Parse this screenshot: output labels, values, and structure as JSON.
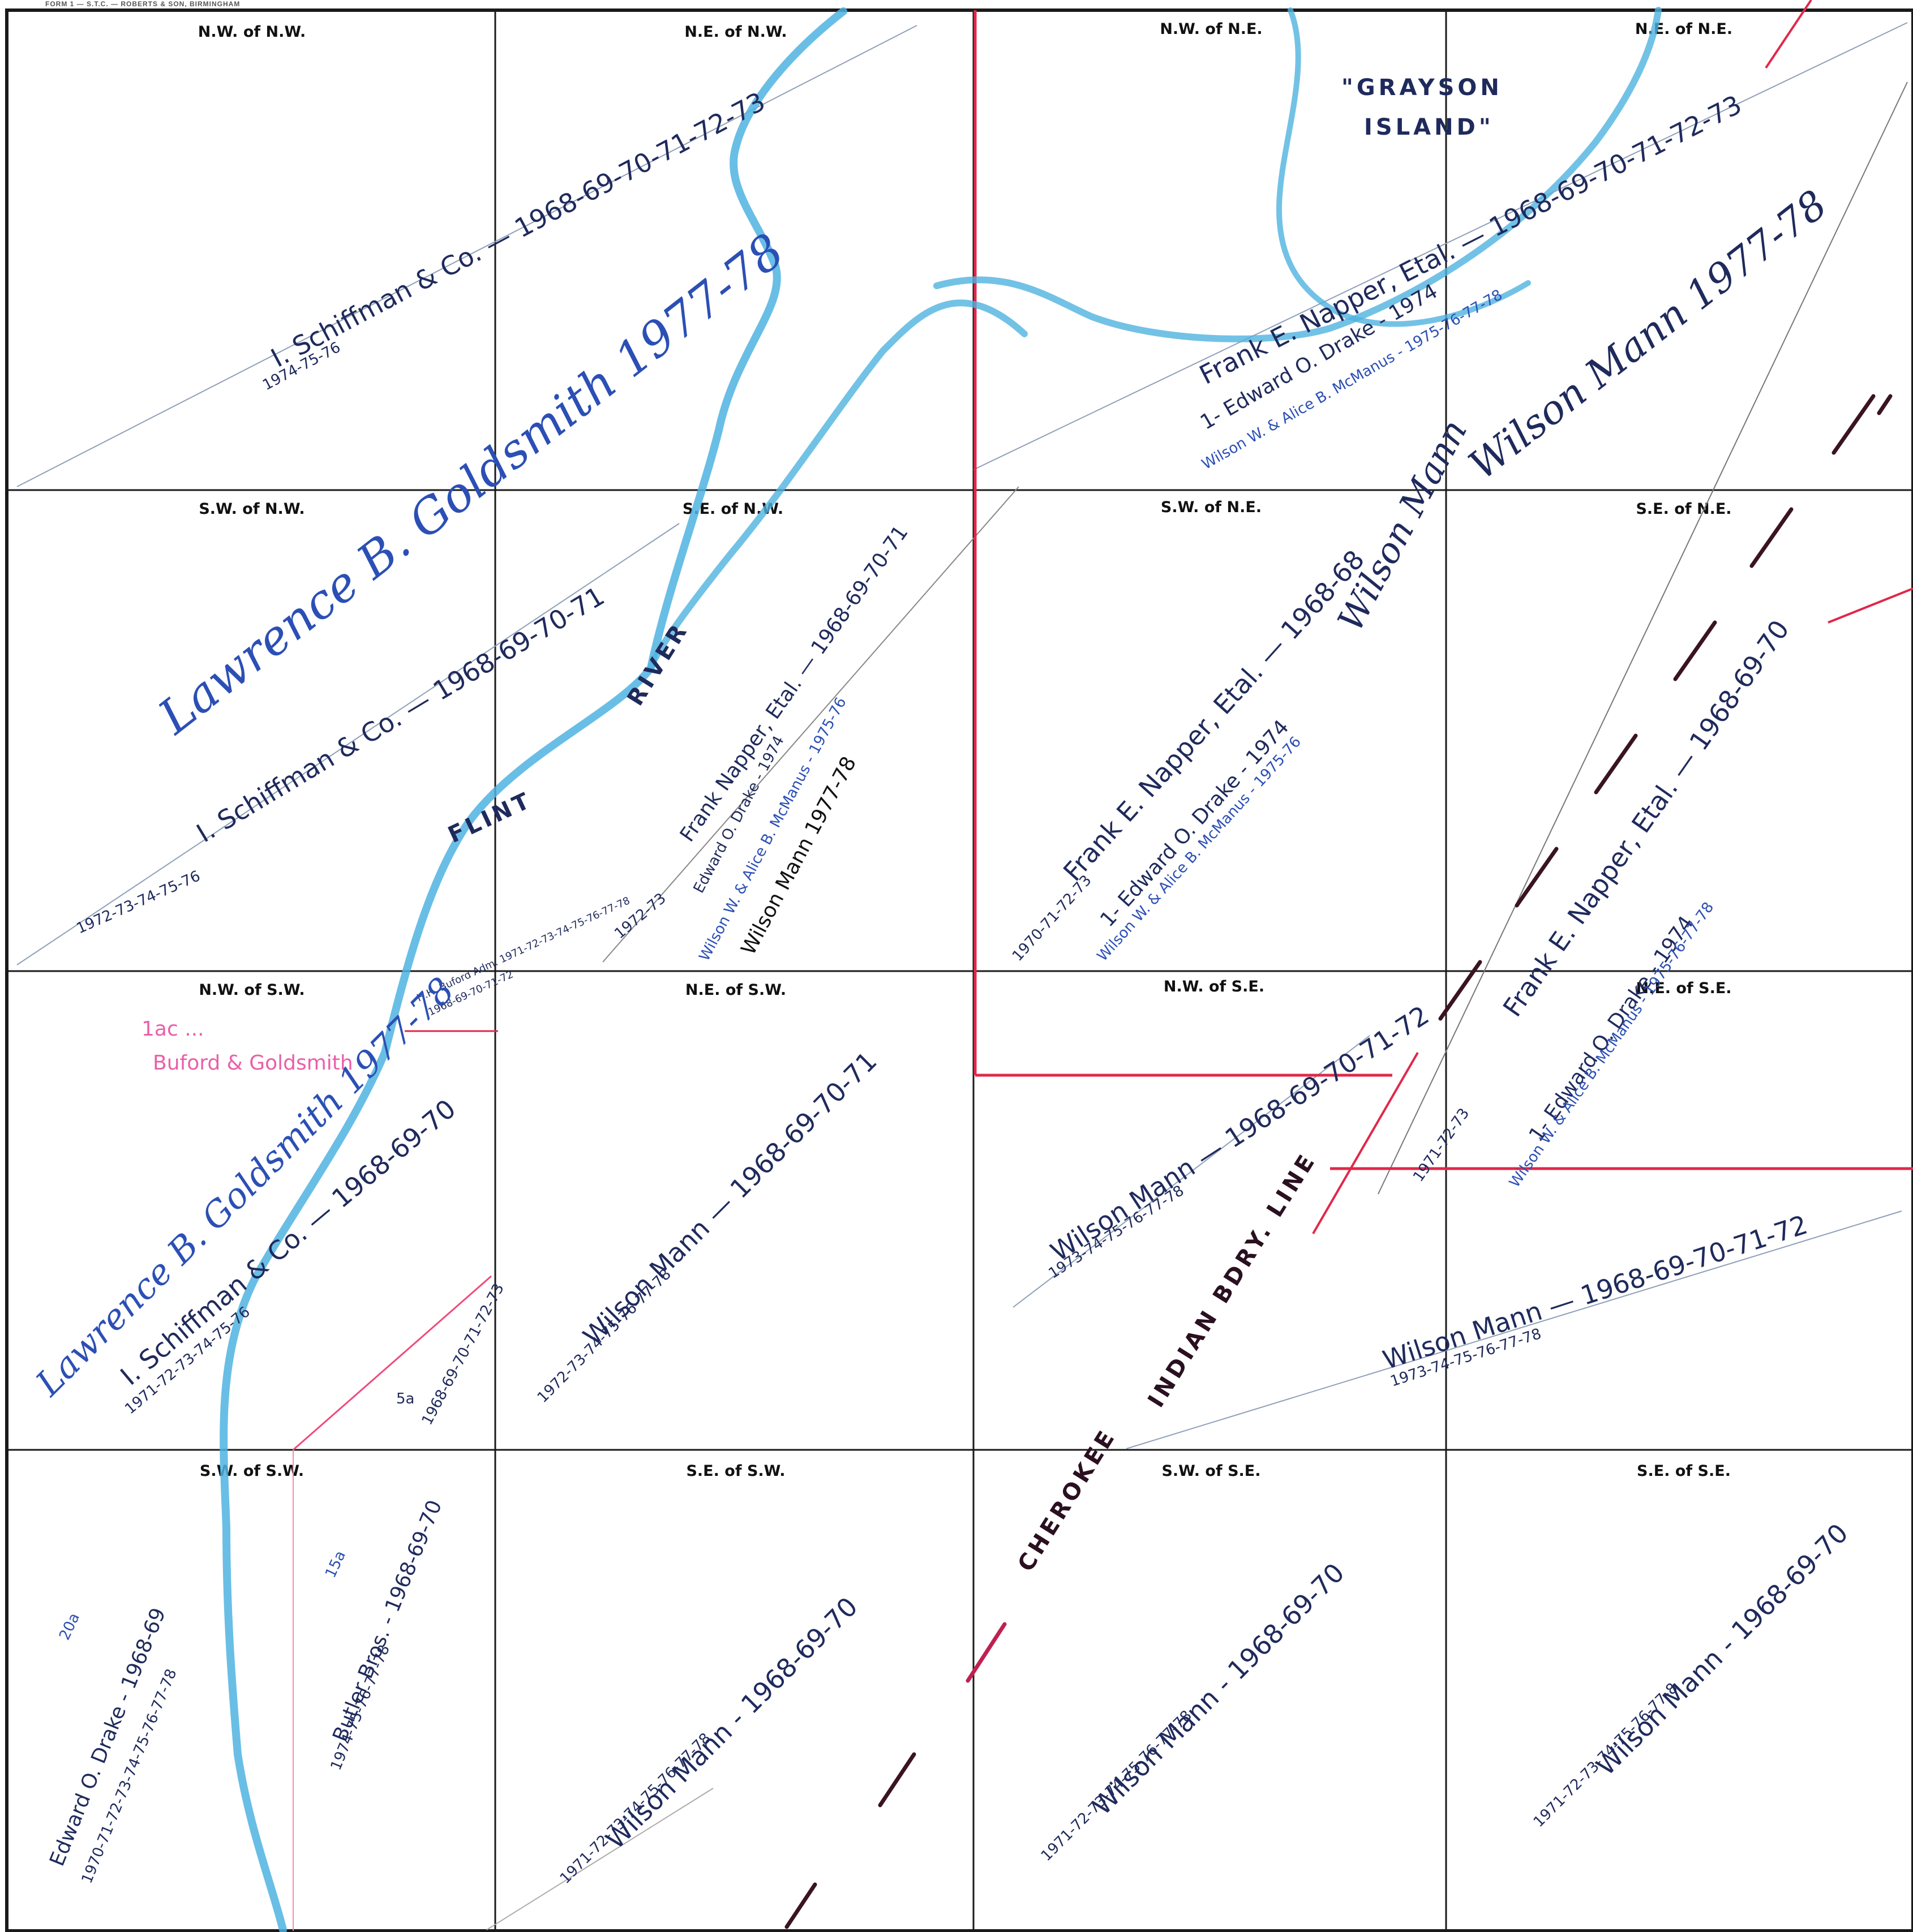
{
  "form_label": "FORM 1 — S.T.C. — ROBERTS & SON, BIRMINGHAM",
  "colors": {
    "grid": "#1a1a1a",
    "ink_dark": "#1f2a5c",
    "ink_blue": "#2b4fb5",
    "river": "#4fb3e0",
    "boundary_red": "#e0284a",
    "pink": "#ea5fa8"
  },
  "quarters": {
    "nw_nw": "N.W. of N.W.",
    "ne_nw": "N.E. of N.W.",
    "nw_ne": "N.W. of N.E.",
    "ne_ne": "N.E. of N.E.",
    "sw_nw": "S.W. of N.W.",
    "se_nw": "S.E. of N.W.",
    "sw_ne": "S.W. of N.E.",
    "se_ne": "S.E. of N.E.",
    "nw_sw": "N.W. of S.W.",
    "ne_sw": "N.E. of S.W.",
    "nw_se": "N.W. of S.E.",
    "ne_se": "N.E. of S.E.",
    "sw_sw": "S.W. of S.W.",
    "se_sw": "S.E. of S.W.",
    "sw_se": "S.W. of S.E.",
    "se_se": "S.E. of S.E."
  },
  "features": {
    "island_1": "\"GRAYSON",
    "island_2": "ISLAND\"",
    "river_1": "FLINT",
    "river_2": "RIVER",
    "indian_line": "INDIAN BDRY. LINE",
    "cherokee": "CHEROKEE"
  },
  "owners": {
    "schiffman_top": "I. Schiffman & Co. — 1968-69-70-71-72-73",
    "schiffman_top_years": "1974-75-76",
    "goldsmith_top": "Lawrence B. Goldsmith 1977-78",
    "schiffman_mid": "I. Schiffman & Co. — 1968-69-70-71",
    "schiffman_mid_years": "1972-73-74-75-76",
    "napper_ne": "Frank E. Napper, Etal. — 1968-69-70-71-72-73",
    "drake_ne": "1- Edward O. Drake - 1974",
    "mcmanus_ne": "Wilson W. & Alice B. McManus - 1975-76-77-78",
    "wilson_mann_ne": "Wilson Mann 1977-78",
    "napper_se_nw": "Frank Napper, Etal. — 1968-69-70-71",
    "napper_se_nw_years": "1972-73",
    "drake_se_nw": "Edward O. Drake - 1974",
    "mcmanus_se_nw": "Wilson W. & Alice B. McManus - 1975-76",
    "wilson_mann_se_nw": "Wilson Mann 1977-78",
    "napper_sw_ne": "Frank E. Napper, Etal. — 1968-68",
    "napper_sw_ne_years": "1970-71-72-73",
    "drake_sw_ne": "1- Edward O. Drake - 1974",
    "mcmanus_sw_ne": "Wilson W. & Alice B. McManus - 1975-76",
    "wilson_mann_sw_ne": "Wilson Mann",
    "napper_se_ne": "Frank E. Napper, Etal. — 1968-69-70",
    "napper_se_ne_years": "1971-72-73",
    "drake_se_ne": "1- Edward O. Drake - 1974",
    "mcmanus_se_ne": "Wilson W. & Alice B. McManus - 1975-76-77-78",
    "pink_note_1": "1ac ...",
    "pink_note_2": "Buford & Goldsmith",
    "buford_note": "H.H. Buford Adm. 1971-72-73-74-75-76-77-78",
    "buford_note_2": "1968-69-70-71-72",
    "goldsmith_sw": "Lawrence B. Goldsmith 1977-78",
    "schiffman_sw": "I. Schiffman & Co. — 1968-69-70",
    "schiffman_sw_years": "1971-72-73-74-75-76",
    "mann_ne_sw": "Wilson Mann — 1968-69-70-71",
    "mann_ne_sw_years": "1972-73-74-75-76-77-78",
    "mann_nw_se": "Wilson Mann — 1968-69-70-71-72",
    "mann_nw_se_years": "1973-74-75-76-77-78",
    "mann_ne_se": "Wilson Mann — 1968-69-70-71-72",
    "mann_ne_se_years": "1973-74-75-76-77-78",
    "acres_5": "5a",
    "mann_5a": "1968-69-70-71-72-73",
    "acres_20": "20a",
    "acres_15": "15a",
    "drake_sw_sw": "Edward O. Drake - 1968-69",
    "drake_sw_sw_years": "1970-71-72-73-74-75-76-77-78",
    "butler": "Butler Bros. - 1968-69-70",
    "butler_years": "1974-75-76-77-78",
    "mann_se_sw": "Wilson Mann - 1968-69-70",
    "mann_se_sw_years": "1971-72-73-74-75-76-77-78",
    "mann_sw_se": "Wilson Mann - 1968-69-70",
    "mann_sw_se_years": "1971-72-73-74-75-76-77-78",
    "mann_se_se": "Wilson Mann - 1968-69-70",
    "mann_se_se_years": "1971-72-73-74-75-76-77-8"
  }
}
